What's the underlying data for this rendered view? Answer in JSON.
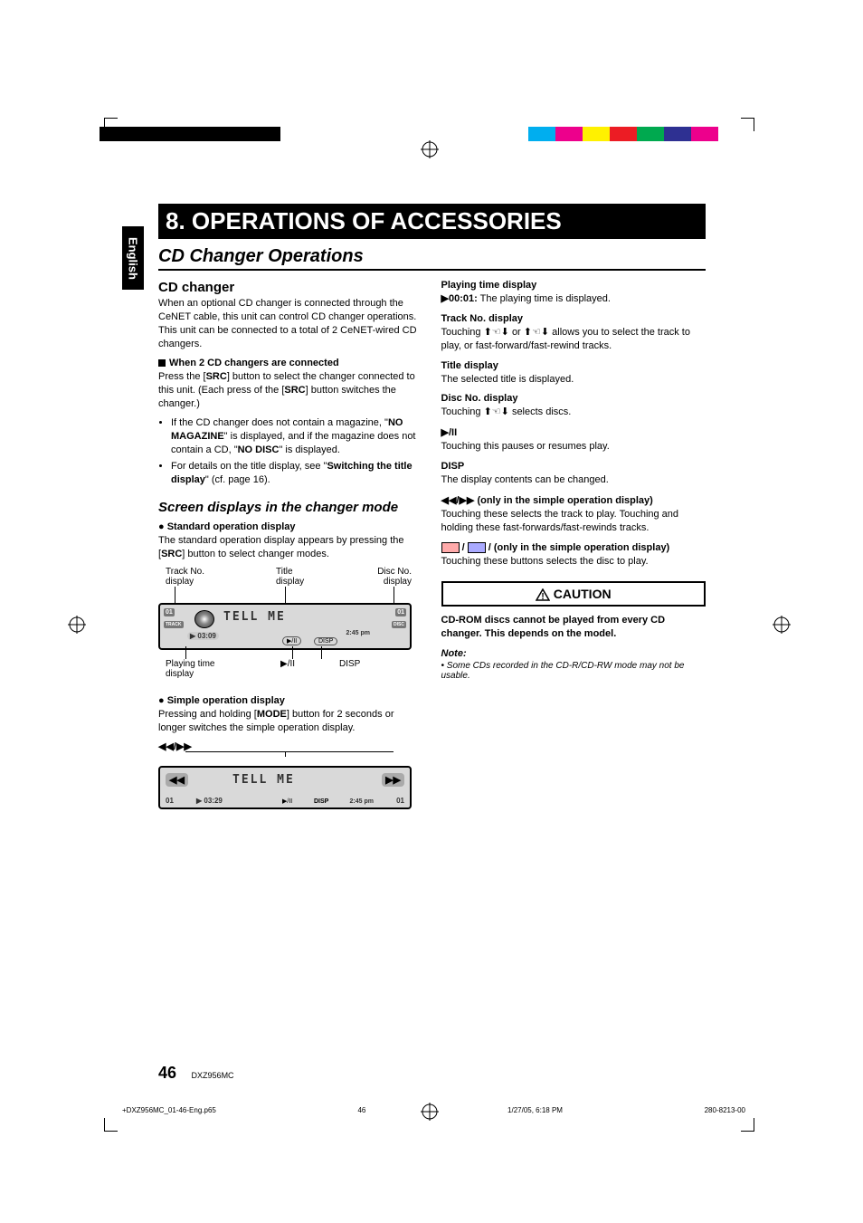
{
  "lang_tab": "English",
  "chapter_title": "8. OPERATIONS OF ACCESSORIES",
  "section_title": "CD Changer Operations",
  "color_bar": [
    "#00aeef",
    "#ed008c",
    "#fff100",
    "#ec1c24",
    "#00a94f",
    "#2e3092",
    "#ed008c",
    "#ffffff"
  ],
  "left": {
    "h3": "CD changer",
    "p1": "When an optional CD changer is connected through the CeNET cable, this unit can control CD changer operations. This unit can be connected to a total of 2 CeNET-wired CD changers.",
    "h4": "When 2 CD changers are connected",
    "p2_pre": "Press the [",
    "p2_src": "SRC",
    "p2_mid": "] button to select the changer connected to this unit. (Each press of the [",
    "p2_end": "] button switches the changer.)",
    "li1_pre": "If the CD changer does not contain a magazine, \"",
    "li1_b1": "NO MAGAZINE",
    "li1_mid": "\" is displayed, and if the magazine does not contain a CD, \"",
    "li1_b2": "NO DISC",
    "li1_end": "\" is displayed.",
    "li2_pre": "For details on the title display, see \"",
    "li2_b": "Switching the title display",
    "li2_end": "\" (cf. page 16).",
    "sub_title": "Screen displays in the changer mode",
    "std_head": "Standard operation display",
    "std_p_pre": "The standard operation display appears by pressing the [",
    "std_p_end": "] button to select changer modes.",
    "diag1": {
      "label_track": "Track No.\ndisplay",
      "label_title": "Title\ndisplay",
      "label_disc": "Disc No.\ndisplay",
      "label_playing": "Playing time\ndisplay",
      "label_playpause": "▶/II",
      "label_disp": "DISP",
      "screen_title": "TELL ME",
      "track_box": "01",
      "track_label": "TRACK",
      "time": "▶ 03:09",
      "clock": "2:45 pm",
      "playpause_btn": "▶/II",
      "disp_btn": "DISP",
      "disc_no": "01",
      "disc_label": "DISC"
    },
    "simple_head": "Simple operation display",
    "simple_p_pre": "Pressing and holding [",
    "simple_p_b": "MODE",
    "simple_p_end": "] button for 2 seconds or longer switches the simple operation display.",
    "diag2": {
      "top_label": "◀◀/▶▶",
      "screen_title": "TELL ME",
      "left_btn": "◀◀",
      "right_btn": "▶▶",
      "track": "01",
      "time": "▶ 03:29",
      "clock": "2:45 pm",
      "playpause": "▶/II",
      "disp": "DISP",
      "disc": "01"
    }
  },
  "right": {
    "pt_head": "Playing time display",
    "pt_val": "▶00:01:",
    "pt_text": " The playing time is displayed.",
    "tn_head": "Track No. display",
    "tn_text": "Touching ⬆☜⬇ or ⬆☜⬇ allows you to select the track to play, or fast-forward/fast-rewind tracks.",
    "tt_head": "Title display",
    "tt_text": "The selected title is displayed.",
    "dn_head": "Disc No. display",
    "dn_text": "Touching ⬆☜⬇ selects discs.",
    "pp_head": "▶/II",
    "pp_text": "Touching this pauses or resumes play.",
    "disp_head": "DISP",
    "disp_text": "The display contents can be changed.",
    "rw_head": "◀◀/▶▶ (only in the simple operation display)",
    "rw_text": "Touching these selects the track to play. Touching and holding these fast-forwards/fast-rewinds tracks.",
    "disc_btn_head": " /  (only in the simple operation display)",
    "disc_btn_text": "Touching these buttons selects the disc to play.",
    "caution": "CAUTION",
    "caution_text": "CD-ROM discs cannot be played from every CD changer. This depends on the model.",
    "note_head": "Note:",
    "note_text": "• Some CDs recorded in the CD-R/CD-RW mode may not be usable."
  },
  "footer": {
    "page": "46",
    "model": "DXZ956MC",
    "file": "+DXZ956MC_01-46-Eng.p65",
    "pg": "46",
    "date": "1/27/05, 6:18 PM",
    "code": "280-8213-00"
  }
}
